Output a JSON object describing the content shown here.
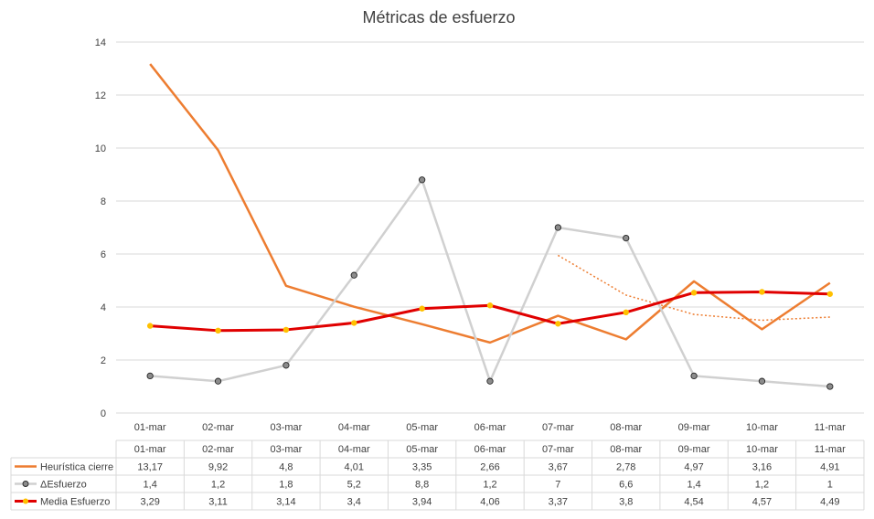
{
  "chart_data": {
    "type": "line",
    "title": "Métricas de esfuerzo",
    "categories": [
      "01-mar",
      "02-mar",
      "03-mar",
      "04-mar",
      "05-mar",
      "06-mar",
      "07-mar",
      "08-mar",
      "09-mar",
      "10-mar",
      "11-mar"
    ],
    "ylim": [
      0,
      14
    ],
    "yticks": [
      0,
      2,
      4,
      6,
      8,
      10,
      12,
      14
    ],
    "grid": true,
    "legend": "data-table-below",
    "series": [
      {
        "name": "Heurística cierre",
        "values": [
          13.17,
          9.92,
          4.8,
          4.01,
          3.35,
          2.66,
          3.67,
          2.78,
          4.97,
          3.16,
          4.91
        ],
        "labels": [
          "13,17",
          "9,92",
          "4,8",
          "4,01",
          "3,35",
          "2,66",
          "3,67",
          "2,78",
          "4,97",
          "3,16",
          "4,91"
        ],
        "color": "#ED7D31",
        "marker": "none"
      },
      {
        "name": "ΔEsfuerzo",
        "values": [
          1.4,
          1.2,
          1.8,
          5.2,
          8.8,
          1.2,
          7,
          6.6,
          1.4,
          1.2,
          1
        ],
        "labels": [
          "1,4",
          "1,2",
          "1,8",
          "5,2",
          "8,8",
          "1,2",
          "7",
          "6,6",
          "1,4",
          "1,2",
          "1"
        ],
        "color": "#D0D0D0",
        "marker_color": "#7f7f7f",
        "marker": "circle"
      },
      {
        "name": "Media Esfuerzo",
        "values": [
          3.29,
          3.11,
          3.14,
          3.4,
          3.94,
          4.06,
          3.37,
          3.8,
          4.54,
          4.57,
          4.49
        ],
        "labels": [
          "3,29",
          "3,11",
          "3,14",
          "3,4",
          "3,94",
          "4,06",
          "3,37",
          "3,8",
          "4,54",
          "4,57",
          "4,49"
        ],
        "color": "#E00000",
        "marker_color": "#FFC000",
        "marker": "circle"
      }
    ],
    "trendline": {
      "series": "Heurística cierre",
      "style": "dotted",
      "color": "#ED7D31",
      "x": [
        "07-mar",
        "08-mar",
        "09-mar",
        "10-mar",
        "11-mar"
      ],
      "values": [
        5.95,
        4.45,
        3.72,
        3.5,
        3.62
      ]
    }
  }
}
